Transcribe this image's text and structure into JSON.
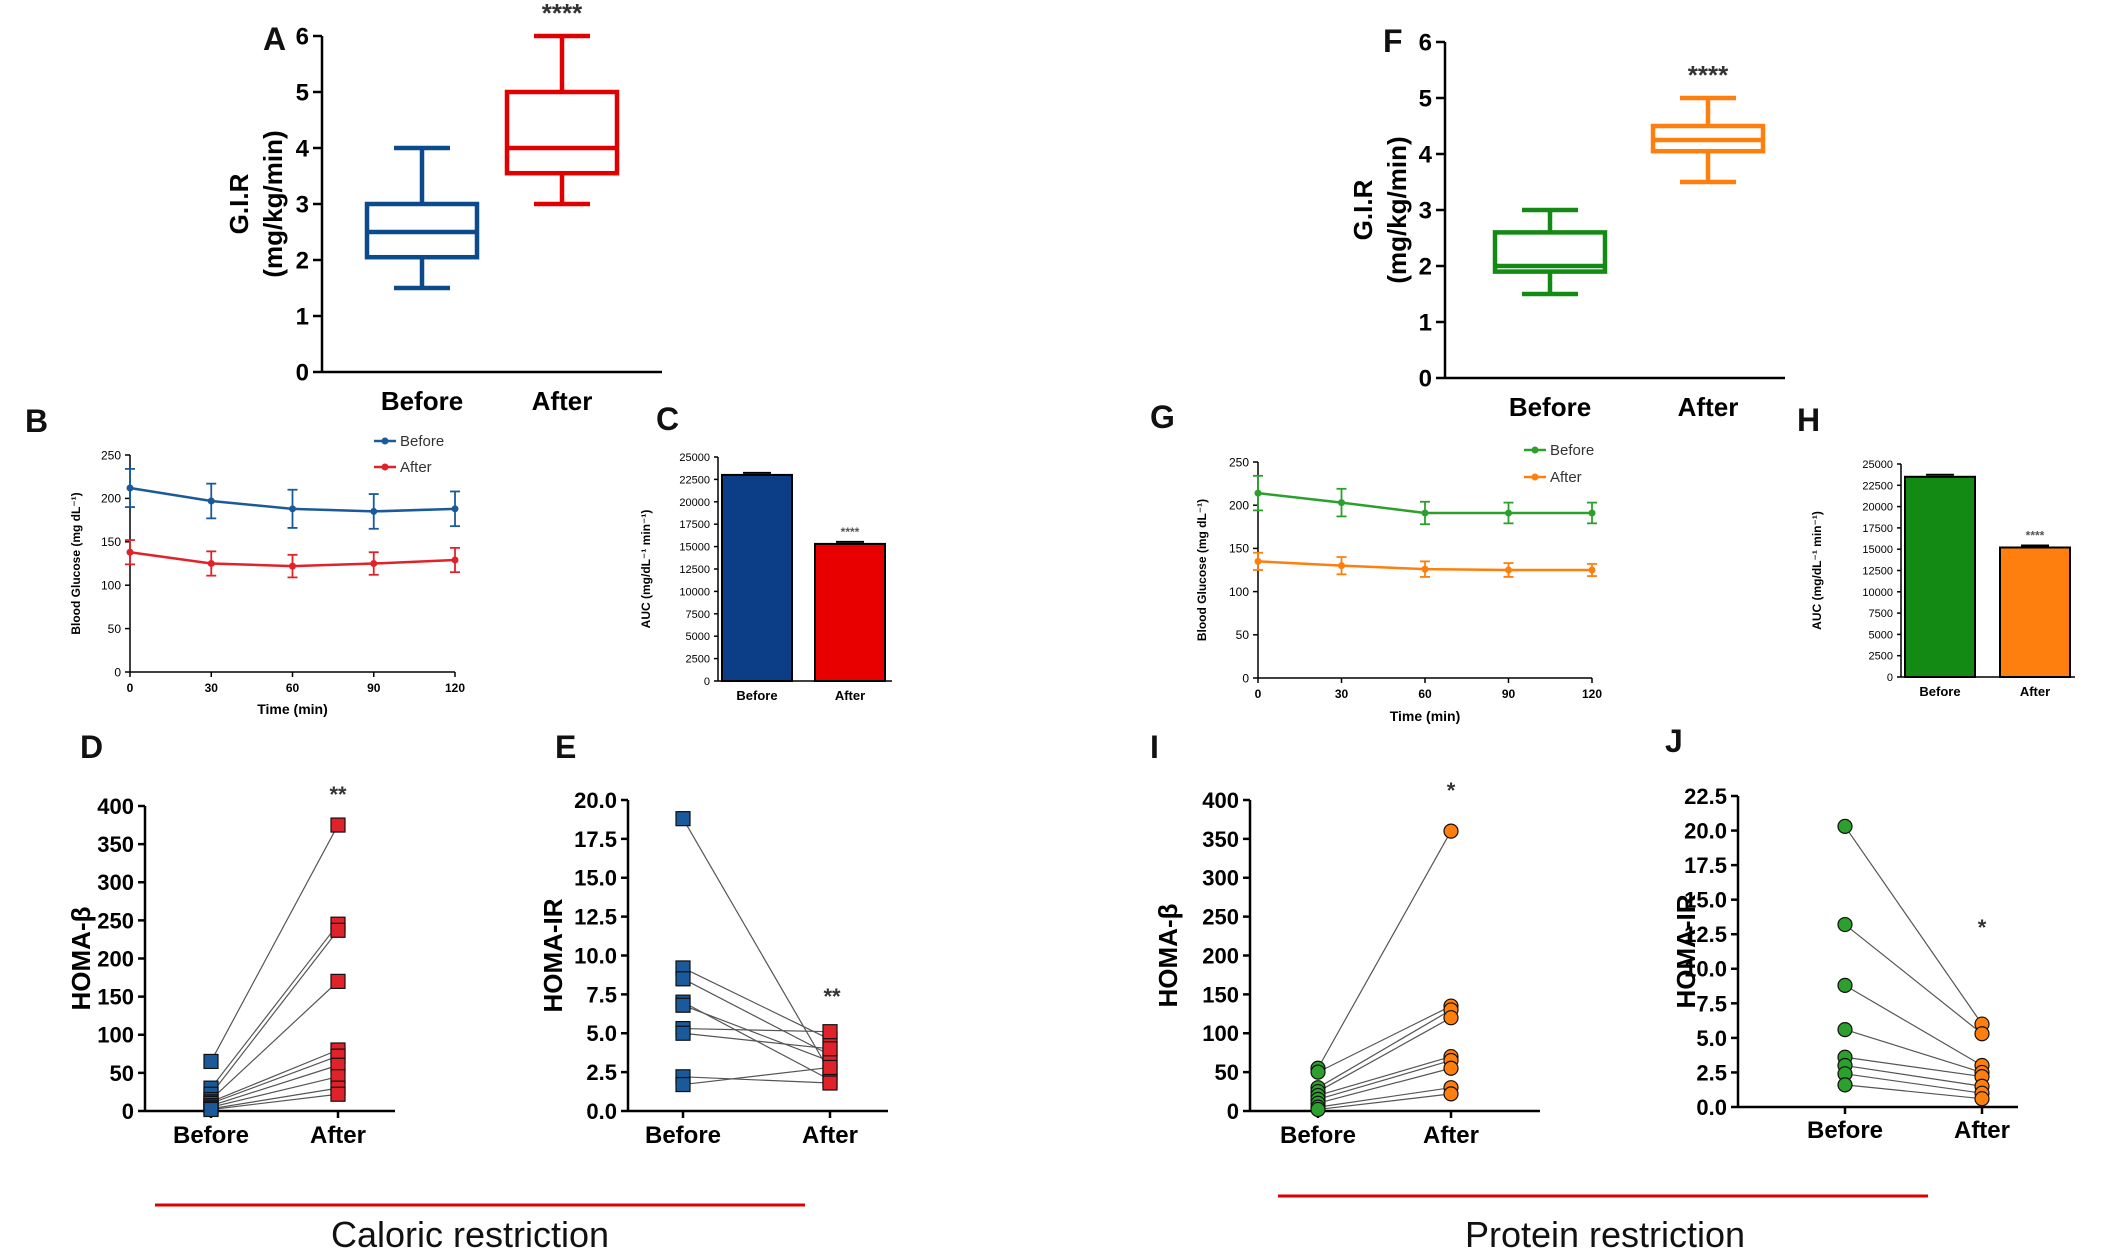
{
  "groups": [
    {
      "label": "Caloric restriction",
      "color": "#e00000"
    },
    {
      "label": "Protein restriction",
      "color": "#e00000"
    }
  ],
  "chart_data": [
    {
      "id": "A",
      "letter": "A",
      "type": "box",
      "ylabel": [
        "G.I.R",
        "(mg/kg/min)"
      ],
      "ylim": [
        0,
        6
      ],
      "yticks": [
        0,
        1,
        2,
        3,
        4,
        5,
        6
      ],
      "categories": [
        "Before",
        "After"
      ],
      "boxes": [
        {
          "category": "Before",
          "min": 1.5,
          "q1": 2.05,
          "median": 2.5,
          "q3": 3.0,
          "max": 4.0,
          "color": "#0b4a8b"
        },
        {
          "category": "After",
          "min": 3.0,
          "q1": 3.55,
          "median": 4.0,
          "q3": 5.0,
          "max": 6.0,
          "color": "#e00000"
        }
      ],
      "significance": "****"
    },
    {
      "id": "B",
      "letter": "B",
      "type": "line",
      "xlabel": "Time (min)",
      "ylabel": "Blood Glucose (mg dL⁻¹)",
      "xticks": [
        0,
        30,
        60,
        90,
        120
      ],
      "xlim": [
        0,
        120
      ],
      "yticks": [
        0,
        50,
        100,
        150,
        200,
        250
      ],
      "ylim": [
        0,
        250
      ],
      "series": [
        {
          "name": "Before",
          "color": "#1a5a9a",
          "x": [
            0,
            30,
            60,
            90,
            120
          ],
          "y": [
            212,
            197,
            188,
            185,
            188
          ],
          "err": [
            22,
            20,
            22,
            20,
            20
          ]
        },
        {
          "name": "After",
          "color": "#e0232a",
          "x": [
            0,
            30,
            60,
            90,
            120
          ],
          "y": [
            138,
            125,
            122,
            125,
            129
          ],
          "err": [
            14,
            14,
            13,
            13,
            14
          ]
        }
      ]
    },
    {
      "id": "C",
      "letter": "C",
      "type": "bar",
      "ylabel": "AUC (mg/dL⁻¹ min⁻¹)",
      "categories": [
        "Before",
        "After"
      ],
      "values": [
        23000,
        15300
      ],
      "ylim": [
        0,
        25000
      ],
      "yticks": [
        0,
        2500,
        5000,
        7500,
        10000,
        12500,
        15000,
        17500,
        20000,
        22500,
        25000
      ],
      "colors": [
        "#0b3e86",
        "#e80000"
      ],
      "significance": "****"
    },
    {
      "id": "D",
      "letter": "D",
      "type": "paired",
      "ylabel": "HOMA-β",
      "categories": [
        "Before",
        "After"
      ],
      "ylim": [
        0,
        400
      ],
      "yticks": [
        "0",
        "50",
        "100",
        "150",
        "200",
        "250",
        "300",
        "350",
        "400"
      ],
      "marker": "square",
      "colors": [
        "#1a5a9a",
        "#e0232a"
      ],
      "pairs": [
        [
          65,
          375
        ],
        [
          30,
          245
        ],
        [
          22,
          237
        ],
        [
          15,
          170
        ],
        [
          12,
          80
        ],
        [
          10,
          72
        ],
        [
          7,
          60
        ],
        [
          5,
          45
        ],
        [
          3,
          30
        ],
        [
          2,
          22
        ]
      ],
      "significance": "**"
    },
    {
      "id": "E",
      "letter": "E",
      "type": "paired",
      "ylabel": "HOMA-IR",
      "categories": [
        "Before",
        "After"
      ],
      "ylim": [
        0,
        20
      ],
      "yticks": [
        "0.0",
        "2.5",
        "5.0",
        "7.5",
        "10.0",
        "12.5",
        "15.0",
        "17.5",
        "20.0"
      ],
      "marker": "square",
      "colors": [
        "#1a5a9a",
        "#e0232a"
      ],
      "pairs": [
        [
          18.8,
          2.5
        ],
        [
          9.2,
          4.6
        ],
        [
          8.5,
          3.6
        ],
        [
          7.0,
          2.0
        ],
        [
          6.8,
          3.2
        ],
        [
          5.3,
          5.1
        ],
        [
          5.0,
          4.0
        ],
        [
          2.2,
          1.8
        ],
        [
          1.7,
          2.8
        ]
      ],
      "significance": "**"
    },
    {
      "id": "F",
      "letter": "F",
      "type": "box",
      "ylabel": [
        "G.I.R",
        "(mg/kg/min)"
      ],
      "ylim": [
        0,
        6
      ],
      "yticks": [
        0,
        1,
        2,
        3,
        4,
        5,
        6
      ],
      "categories": [
        "Before",
        "After"
      ],
      "boxes": [
        {
          "category": "Before",
          "min": 1.5,
          "q1": 1.9,
          "median": 2.0,
          "q3": 2.6,
          "max": 3.0,
          "color": "#138a13"
        },
        {
          "category": "After",
          "min": 3.5,
          "q1": 4.05,
          "median": 4.25,
          "q3": 4.5,
          "max": 5.0,
          "color": "#ff7f0e"
        }
      ],
      "significance": "****"
    },
    {
      "id": "G",
      "letter": "G",
      "type": "line",
      "xlabel": "Time (min)",
      "ylabel": "Blood Glucose (mg dL⁻¹)",
      "xticks": [
        0,
        30,
        60,
        90,
        120
      ],
      "xlim": [
        0,
        120
      ],
      "yticks": [
        0,
        50,
        100,
        150,
        200,
        250
      ],
      "ylim": [
        0,
        250
      ],
      "series": [
        {
          "name": "Before",
          "color": "#2ca02c",
          "x": [
            0,
            30,
            60,
            90,
            120
          ],
          "y": [
            214,
            203,
            191,
            191,
            191
          ],
          "err": [
            20,
            16,
            13,
            12,
            12
          ]
        },
        {
          "name": "After",
          "color": "#ff7f0e",
          "x": [
            0,
            30,
            60,
            90,
            120
          ],
          "y": [
            135,
            130,
            126,
            125,
            125
          ],
          "err": [
            10,
            10,
            9,
            8,
            7
          ]
        }
      ]
    },
    {
      "id": "H",
      "letter": "H",
      "type": "bar",
      "ylabel": "AUC (mg/dL⁻¹ min⁻¹)",
      "categories": [
        "Before",
        "After"
      ],
      "values": [
        23500,
        15200
      ],
      "ylim": [
        0,
        25000
      ],
      "yticks": [
        0,
        2500,
        5000,
        7500,
        10000,
        12500,
        15000,
        17500,
        20000,
        22500,
        25000
      ],
      "colors": [
        "#138a13",
        "#ff7f0e"
      ],
      "significance": "****"
    },
    {
      "id": "I",
      "letter": "I",
      "type": "paired",
      "ylabel": "HOMA-β",
      "categories": [
        "Before",
        "After"
      ],
      "ylim": [
        0,
        400
      ],
      "yticks": [
        "0",
        "50",
        "100",
        "150",
        "200",
        "250",
        "300",
        "350",
        "400"
      ],
      "marker": "circle",
      "colors": [
        "#2ca02c",
        "#ff7f0e"
      ],
      "pairs": [
        [
          55,
          360
        ],
        [
          50,
          135
        ],
        [
          30,
          130
        ],
        [
          25,
          120
        ],
        [
          20,
          70
        ],
        [
          15,
          65
        ],
        [
          10,
          55
        ],
        [
          5,
          30
        ],
        [
          2,
          22
        ]
      ],
      "significance": "*"
    },
    {
      "id": "J",
      "letter": "J",
      "type": "paired",
      "ylabel": "HOMA-IR",
      "categories": [
        "Before",
        "After"
      ],
      "ylim": [
        0,
        22.5
      ],
      "yticks": [
        "0.0",
        "2.5",
        "5.0",
        "7.5",
        "10.0",
        "12.5",
        "15.0",
        "17.5",
        "20.0",
        "22.5"
      ],
      "marker": "circle",
      "colors": [
        "#2ca02c",
        "#ff7f0e"
      ],
      "pairs": [
        [
          20.3,
          6.0
        ],
        [
          13.2,
          5.3
        ],
        [
          8.8,
          3.0
        ],
        [
          5.6,
          2.5
        ],
        [
          3.6,
          2.2
        ],
        [
          3.0,
          1.5
        ],
        [
          2.4,
          1.0
        ],
        [
          1.6,
          0.6
        ]
      ],
      "significance": "*"
    }
  ]
}
